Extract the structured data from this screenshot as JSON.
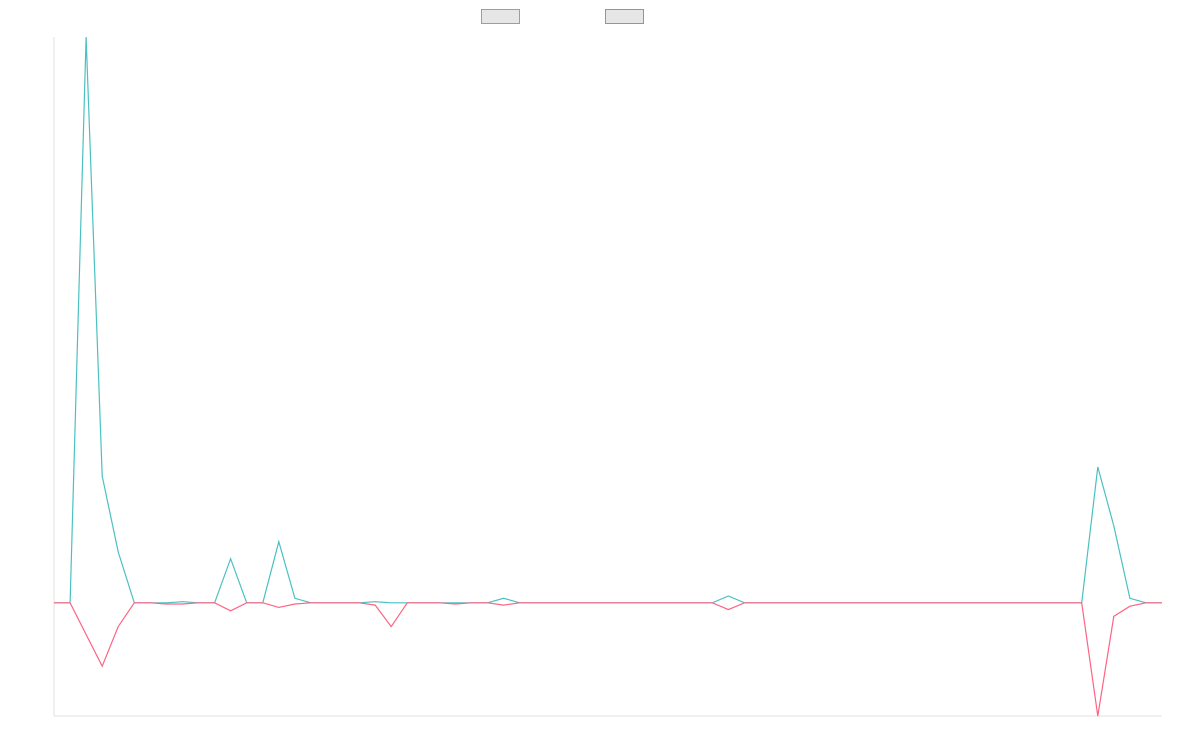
{
  "chart_data": {
    "type": "line",
    "title": "",
    "xlabel": "",
    "ylabel": "",
    "ylim": [
      -100,
      500
    ],
    "grid": false,
    "legend_position": "top-center",
    "x": [
      1,
      2,
      3,
      4,
      5,
      6,
      7,
      8,
      9,
      10,
      11,
      12,
      13,
      14,
      15,
      16,
      17,
      18,
      19,
      20,
      21,
      22,
      23,
      24,
      25,
      26,
      27,
      28,
      29,
      30,
      31,
      32,
      33,
      34,
      35,
      36,
      37,
      38,
      39,
      40,
      41,
      42,
      43,
      44,
      45,
      46,
      47,
      48,
      49,
      50,
      51,
      52,
      53,
      54,
      55,
      56,
      57,
      58,
      59,
      60,
      61,
      62,
      63,
      64,
      65,
      66,
      67,
      68,
      69,
      70
    ],
    "series": [
      {
        "name": "",
        "color": "#4bc0c0",
        "values": [
          0,
          0,
          500,
          112,
          45,
          0,
          0,
          0,
          1,
          0,
          0,
          39,
          0,
          0,
          54,
          4,
          0,
          0,
          0,
          0,
          1,
          0,
          0,
          0,
          0,
          0,
          0,
          0,
          4,
          0,
          0,
          0,
          0,
          0,
          0,
          0,
          0,
          0,
          0,
          0,
          0,
          0,
          6,
          0,
          0,
          0,
          0,
          0,
          0,
          0,
          0,
          0,
          0,
          0,
          0,
          0,
          0,
          0,
          0,
          0,
          0,
          0,
          0,
          0,
          0,
          120,
          68,
          4,
          0,
          0
        ]
      },
      {
        "name": "",
        "color": "#ff6384",
        "values": [
          0,
          0,
          -28,
          -56,
          -21,
          0,
          0,
          -1,
          -1,
          0,
          0,
          -7,
          0,
          0,
          -4,
          -1,
          0,
          0,
          0,
          0,
          -2,
          -21,
          0,
          0,
          0,
          -1,
          0,
          0,
          -2,
          0,
          0,
          0,
          0,
          0,
          0,
          0,
          0,
          0,
          0,
          0,
          0,
          0,
          -6,
          0,
          0,
          0,
          0,
          0,
          0,
          0,
          0,
          0,
          0,
          0,
          0,
          0,
          0,
          0,
          0,
          0,
          0,
          0,
          0,
          0,
          0,
          -100,
          -12,
          -3,
          0,
          0
        ]
      }
    ]
  }
}
